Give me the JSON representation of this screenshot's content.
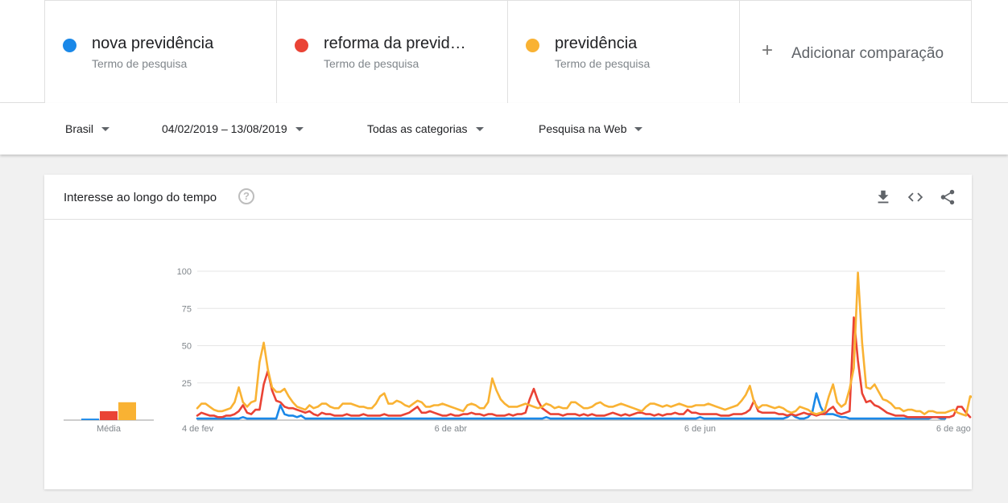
{
  "terms": [
    {
      "name": "nova previdência",
      "subtitle": "Termo de pesquisa",
      "color": "#1a88e8"
    },
    {
      "name": "reforma da previd…",
      "subtitle": "Termo de pesquisa",
      "color": "#ea4335"
    },
    {
      "name": "previdência",
      "subtitle": "Termo de pesquisa",
      "color": "#f9b233"
    }
  ],
  "add_comparison": {
    "plus": "+",
    "label": "Adicionar comparação"
  },
  "filters": {
    "region": "Brasil",
    "date_range": "04/02/2019 – 13/08/2019",
    "category": "Todas as categorias",
    "search_type": "Pesquisa na Web"
  },
  "card": {
    "title": "Interesse ao longo do tempo",
    "help_icon": "?",
    "icons": [
      "download-icon",
      "embed-icon",
      "share-icon"
    ]
  },
  "chart_data": {
    "type": "line",
    "title": "Interesse ao longo do tempo",
    "ylim": [
      0,
      100
    ],
    "y_ticks": [
      "100",
      "75",
      "50",
      "25"
    ],
    "x_ticks": [
      "4 de fev",
      "6 de abr",
      "6 de jun",
      "6 de ago"
    ],
    "grid": true,
    "average": {
      "label": "Média",
      "values": [
        1,
        6,
        12
      ]
    },
    "series": [
      {
        "name": "nova previdência",
        "color": "#1a88e8",
        "values": [
          1,
          1,
          1,
          1,
          1,
          1,
          1,
          1,
          1,
          1,
          1,
          2,
          1,
          1,
          1,
          1,
          1,
          1,
          1,
          1,
          10,
          4,
          3,
          3,
          2,
          3,
          1,
          1,
          1,
          1,
          1,
          1,
          1,
          1,
          1,
          1,
          1,
          1,
          1,
          1,
          1,
          1,
          1,
          1,
          1,
          1,
          1,
          1,
          1,
          1,
          1,
          1,
          1,
          1,
          1,
          1,
          1,
          1,
          1,
          1,
          1,
          1,
          1,
          1,
          1,
          1,
          1,
          1,
          1,
          1,
          1,
          1,
          1,
          1,
          1,
          1,
          1,
          1,
          1,
          1,
          1,
          1,
          1,
          1,
          2,
          1,
          1,
          1,
          1,
          1,
          1,
          1,
          1,
          1,
          1,
          1,
          1,
          1,
          1,
          1,
          1,
          1,
          1,
          1,
          1,
          1,
          1,
          1,
          1,
          1,
          1,
          1,
          1,
          1,
          1,
          1,
          1,
          1,
          1,
          1,
          1,
          2,
          1,
          1,
          1,
          1,
          1,
          1,
          1,
          1,
          1,
          1,
          1,
          1,
          1,
          1,
          1,
          1,
          1,
          1,
          1,
          1,
          2,
          4,
          2,
          1,
          1,
          2,
          5,
          18,
          9,
          4,
          4,
          4,
          3,
          2,
          2,
          1,
          1,
          1,
          1,
          1,
          1,
          1,
          1,
          1,
          1,
          1,
          1,
          1,
          1,
          1,
          1,
          1,
          1,
          1,
          1,
          2,
          2,
          1,
          1
        ]
      },
      {
        "name": "reforma da previd…",
        "color": "#ea4335",
        "values": [
          3,
          5,
          4,
          3,
          3,
          2,
          2,
          3,
          3,
          4,
          6,
          10,
          5,
          4,
          7,
          7,
          24,
          33,
          20,
          13,
          12,
          9,
          8,
          8,
          7,
          6,
          5,
          6,
          4,
          3,
          5,
          4,
          4,
          3,
          3,
          3,
          4,
          3,
          3,
          3,
          4,
          3,
          3,
          3,
          3,
          4,
          3,
          3,
          3,
          3,
          4,
          5,
          7,
          9,
          5,
          5,
          6,
          5,
          4,
          3,
          3,
          4,
          3,
          3,
          4,
          4,
          5,
          4,
          4,
          3,
          4,
          4,
          3,
          3,
          3,
          4,
          3,
          4,
          4,
          5,
          14,
          21,
          13,
          8,
          6,
          4,
          4,
          4,
          3,
          4,
          4,
          4,
          3,
          4,
          3,
          4,
          3,
          3,
          3,
          4,
          5,
          4,
          3,
          4,
          3,
          4,
          5,
          5,
          4,
          4,
          3,
          4,
          3,
          4,
          4,
          5,
          4,
          4,
          7,
          5,
          5,
          4,
          4,
          4,
          4,
          4,
          3,
          3,
          3,
          4,
          4,
          4,
          5,
          7,
          13,
          6,
          5,
          5,
          5,
          5,
          4,
          4,
          3,
          4,
          3,
          4,
          5,
          4,
          4,
          3,
          4,
          4,
          7,
          9,
          5,
          4,
          5,
          6,
          69,
          40,
          18,
          12,
          13,
          10,
          9,
          7,
          5,
          4,
          3,
          3,
          3,
          2,
          2,
          2,
          2,
          2,
          2,
          2,
          2,
          2,
          2,
          2,
          3,
          9,
          9,
          5,
          2
        ]
      },
      {
        "name": "previdência",
        "color": "#f9b233",
        "values": [
          8,
          11,
          11,
          9,
          7,
          6,
          6,
          7,
          8,
          12,
          22,
          12,
          9,
          12,
          13,
          39,
          52,
          34,
          22,
          19,
          19,
          21,
          16,
          12,
          9,
          8,
          7,
          10,
          8,
          9,
          11,
          11,
          9,
          8,
          8,
          11,
          11,
          11,
          10,
          9,
          9,
          8,
          8,
          11,
          16,
          18,
          11,
          11,
          13,
          12,
          10,
          9,
          11,
          13,
          12,
          9,
          9,
          10,
          10,
          11,
          10,
          9,
          8,
          7,
          6,
          10,
          11,
          10,
          8,
          8,
          12,
          28,
          20,
          14,
          11,
          9,
          9,
          9,
          10,
          11,
          10,
          9,
          8,
          9,
          11,
          10,
          8,
          9,
          8,
          8,
          12,
          12,
          10,
          8,
          8,
          9,
          11,
          12,
          10,
          9,
          9,
          10,
          11,
          10,
          9,
          8,
          7,
          6,
          9,
          11,
          11,
          10,
          9,
          10,
          9,
          10,
          11,
          10,
          9,
          9,
          10,
          10,
          10,
          11,
          10,
          9,
          8,
          7,
          8,
          9,
          10,
          13,
          17,
          23,
          12,
          8,
          10,
          10,
          9,
          8,
          9,
          8,
          6,
          5,
          6,
          9,
          8,
          7,
          5,
          4,
          5,
          6,
          16,
          24,
          12,
          9,
          11,
          21,
          35,
          99,
          52,
          22,
          21,
          24,
          19,
          14,
          13,
          11,
          8,
          8,
          6,
          7,
          7,
          6,
          6,
          4,
          6,
          6,
          5,
          5,
          5,
          6,
          7,
          5,
          4,
          3,
          16,
          15,
          8,
          3
        ]
      }
    ]
  }
}
